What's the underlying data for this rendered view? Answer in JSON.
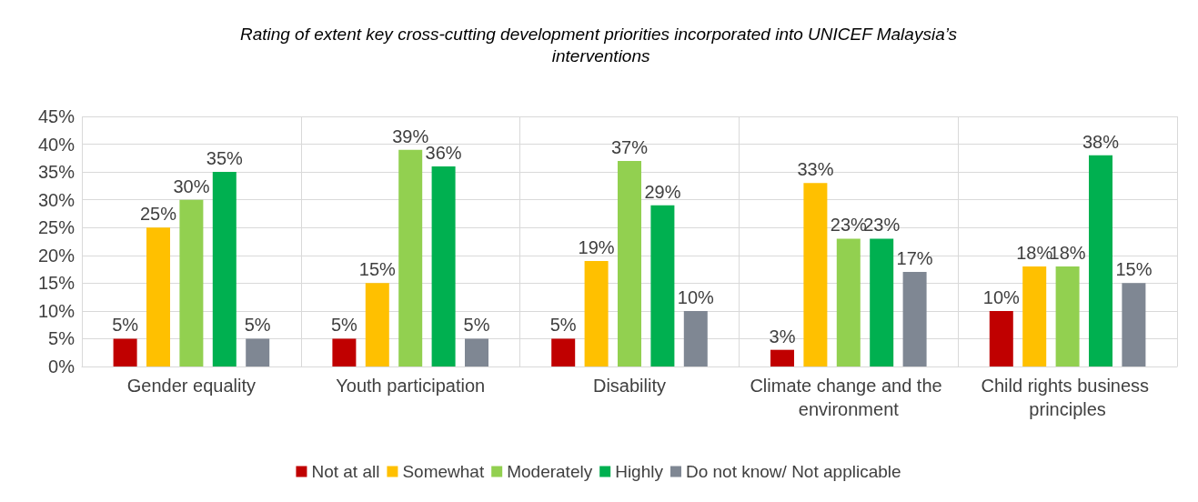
{
  "chart_data": {
    "type": "bar",
    "title": "Rating of extent key cross-cutting development priorities incorporated into UNICEF Malaysia’s interventions",
    "categories": [
      "Gender equality",
      "Youth participation",
      "Disability",
      "Climate change and the environment",
      "Child rights business principles"
    ],
    "series": [
      {
        "name": "Not at all",
        "color": "#c00000",
        "values": [
          5,
          5,
          5,
          3,
          10
        ],
        "value_labels": [
          "5%",
          "5%",
          "5%",
          "3%",
          "10%"
        ]
      },
      {
        "name": "Somewhat",
        "color": "#ffc000",
        "values": [
          25,
          15,
          19,
          33,
          18
        ],
        "value_labels": [
          "25%",
          "15%",
          "19%",
          "33%",
          "18%"
        ]
      },
      {
        "name": "Moderately",
        "color": "#92d050",
        "values": [
          30,
          39,
          37,
          23,
          18
        ],
        "value_labels": [
          "30%",
          "39%",
          "37%",
          "23%",
          "18%"
        ]
      },
      {
        "name": "Highly",
        "color": "#00b050",
        "values": [
          35,
          36,
          29,
          23,
          38
        ],
        "value_labels": [
          "35%",
          "36%",
          "29%",
          "23%",
          "38%"
        ]
      },
      {
        "name": "Do not know/ Not applicable",
        "color": "#7f8793",
        "values": [
          5,
          5,
          10,
          17,
          15
        ],
        "value_labels": [
          "5%",
          "5%",
          "10%",
          "17%",
          "15%"
        ]
      }
    ],
    "ylim": [
      0,
      45
    ],
    "yticks": [
      {
        "value": 0,
        "label": "0%"
      },
      {
        "value": 5,
        "label": "5%"
      },
      {
        "value": 10,
        "label": "10%"
      },
      {
        "value": 15,
        "label": "15%"
      },
      {
        "value": 20,
        "label": "20%"
      },
      {
        "value": 25,
        "label": "25%"
      },
      {
        "value": 30,
        "label": "30%"
      },
      {
        "value": 35,
        "label": "35%"
      },
      {
        "value": 40,
        "label": "40%"
      },
      {
        "value": 45,
        "label": "45%"
      }
    ],
    "grid": true,
    "legend": "bottom"
  }
}
